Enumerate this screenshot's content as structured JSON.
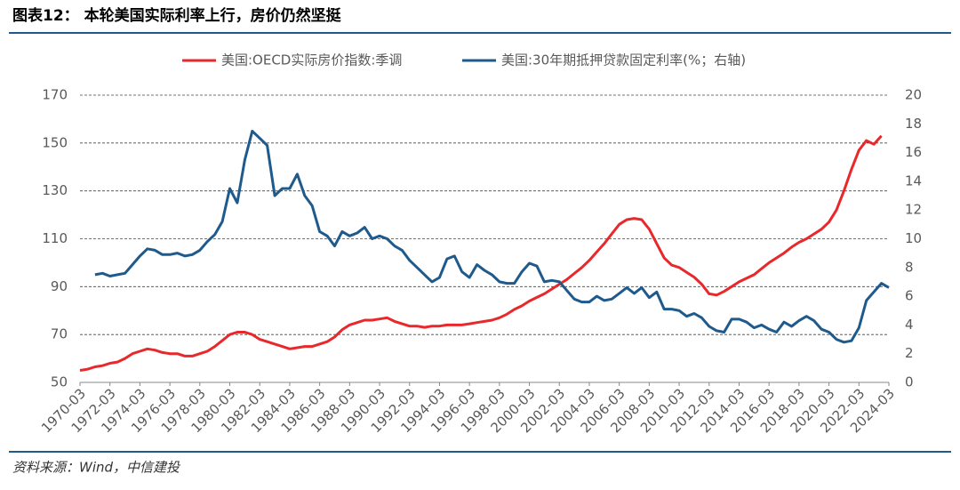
{
  "header": {
    "title": "图表12：  本轮美国实际利率上行，房价仍然坚挺"
  },
  "chart_data": {
    "type": "line",
    "x": [
      1970,
      1970.5,
      1971,
      1971.5,
      1972,
      1972.5,
      1973,
      1973.5,
      1974,
      1974.5,
      1975,
      1975.5,
      1976,
      1976.5,
      1977,
      1977.5,
      1978,
      1978.5,
      1979,
      1979.5,
      1980,
      1980.5,
      1981,
      1981.5,
      1982,
      1982.5,
      1983,
      1983.5,
      1984,
      1984.5,
      1985,
      1985.5,
      1986,
      1986.5,
      1987,
      1987.5,
      1988,
      1988.5,
      1989,
      1989.5,
      1990,
      1990.5,
      1991,
      1991.5,
      1992,
      1992.5,
      1993,
      1993.5,
      1994,
      1994.5,
      1995,
      1995.5,
      1996,
      1996.5,
      1997,
      1997.5,
      1998,
      1998.5,
      1999,
      1999.5,
      2000,
      2000.5,
      2001,
      2001.5,
      2002,
      2002.5,
      2003,
      2003.5,
      2004,
      2004.5,
      2005,
      2005.5,
      2006,
      2006.5,
      2007,
      2007.5,
      2008,
      2008.5,
      2009,
      2009.5,
      2010,
      2010.5,
      2011,
      2011.5,
      2012,
      2012.5,
      2013,
      2013.5,
      2014,
      2014.5,
      2015,
      2015.5,
      2016,
      2016.5,
      2017,
      2017.5,
      2018,
      2018.5,
      2019,
      2019.5,
      2020,
      2020.5,
      2021,
      2021.5,
      2022,
      2022.5,
      2023,
      2023.5,
      2024
    ],
    "series": [
      {
        "name": "美国:OECD实际房价指数:季调",
        "color": "#e8282b",
        "values": [
          55,
          55.5,
          56.5,
          57,
          58,
          58.5,
          60,
          62,
          63,
          64,
          63.5,
          62.5,
          62,
          62,
          61,
          61,
          62,
          63,
          65,
          67.5,
          70,
          71,
          71,
          70,
          68,
          67,
          66,
          65,
          64,
          64.5,
          65,
          65,
          66,
          67,
          69,
          72,
          74,
          75,
          76,
          76,
          76.5,
          77,
          75.5,
          74.5,
          73.5,
          73.5,
          73,
          73.5,
          73.5,
          74,
          74,
          74,
          74.5,
          75,
          75.5,
          76,
          77,
          78.5,
          80.5,
          82,
          84,
          85.5,
          87,
          89,
          91,
          93,
          95.5,
          98,
          101,
          104.5,
          108,
          112,
          116,
          118,
          118.5,
          118,
          114,
          108,
          102,
          99,
          98,
          96,
          94,
          91,
          87,
          86.5,
          88,
          90,
          92,
          93.5,
          95,
          97.5,
          100,
          102,
          104,
          106.5,
          108.5,
          110,
          112,
          114,
          117,
          122,
          130,
          139,
          147,
          151,
          149.5,
          153,
          null
        ]
      },
      {
        "name": "美国:30年期抵押贷款固定利率(%；右轴)",
        "color": "#1f5a8c",
        "axis": "y2",
        "values": [
          null,
          null,
          7.5,
          7.6,
          7.4,
          7.5,
          7.6,
          8.2,
          8.8,
          9.3,
          9.2,
          8.9,
          8.9,
          9.0,
          8.8,
          8.9,
          9.2,
          9.8,
          10.3,
          11.2,
          13.5,
          12.5,
          15.5,
          17.5,
          17.0,
          16.5,
          13.0,
          13.5,
          13.5,
          14.5,
          13.0,
          12.3,
          10.5,
          10.2,
          9.5,
          10.5,
          10.2,
          10.4,
          10.8,
          10.0,
          10.2,
          10.0,
          9.5,
          9.2,
          8.5,
          8.0,
          7.5,
          7.0,
          7.3,
          8.6,
          8.8,
          7.7,
          7.3,
          8.2,
          7.8,
          7.5,
          7.0,
          6.9,
          6.9,
          7.7,
          8.3,
          8.1,
          7.0,
          7.1,
          7.0,
          6.4,
          5.8,
          5.6,
          5.6,
          6.0,
          5.7,
          5.8,
          6.2,
          6.6,
          6.2,
          6.6,
          5.9,
          6.3,
          5.1,
          5.1,
          5.0,
          4.6,
          4.8,
          4.5,
          3.9,
          3.6,
          3.5,
          4.4,
          4.4,
          4.2,
          3.8,
          4.0,
          3.7,
          3.5,
          4.2,
          3.9,
          4.3,
          4.6,
          4.3,
          3.7,
          3.5,
          3.0,
          2.8,
          2.9,
          3.8,
          5.7,
          6.3,
          6.9,
          6.6
        ]
      }
    ],
    "xlim": [
      1970,
      2024
    ],
    "xticks": [
      {
        "value": 1970,
        "label": "1970-03"
      },
      {
        "value": 1972,
        "label": "1972-03"
      },
      {
        "value": 1974,
        "label": "1974-03"
      },
      {
        "value": 1976,
        "label": "1976-03"
      },
      {
        "value": 1978,
        "label": "1978-03"
      },
      {
        "value": 1980,
        "label": "1980-03"
      },
      {
        "value": 1982,
        "label": "1982-03"
      },
      {
        "value": 1984,
        "label": "1984-03"
      },
      {
        "value": 1986,
        "label": "1986-03"
      },
      {
        "value": 1988,
        "label": "1988-03"
      },
      {
        "value": 1990,
        "label": "1990-03"
      },
      {
        "value": 1992,
        "label": "1992-03"
      },
      {
        "value": 1994,
        "label": "1994-03"
      },
      {
        "value": 1996,
        "label": "1996-03"
      },
      {
        "value": 1998,
        "label": "1998-03"
      },
      {
        "value": 2000,
        "label": "2000-03"
      },
      {
        "value": 2002,
        "label": "2002-03"
      },
      {
        "value": 2004,
        "label": "2004-03"
      },
      {
        "value": 2006,
        "label": "2006-03"
      },
      {
        "value": 2008,
        "label": "2008-03"
      },
      {
        "value": 2010,
        "label": "2010-03"
      },
      {
        "value": 2012,
        "label": "2012-03"
      },
      {
        "value": 2014,
        "label": "2014-03"
      },
      {
        "value": 2016,
        "label": "2016-03"
      },
      {
        "value": 2018,
        "label": "2018-03"
      },
      {
        "value": 2020,
        "label": "2020-03"
      },
      {
        "value": 2022,
        "label": "2022-03"
      },
      {
        "value": 2024,
        "label": "2024-03"
      }
    ],
    "ylim": [
      50,
      170
    ],
    "yticks": [
      50,
      70,
      90,
      110,
      130,
      150,
      170
    ],
    "y2lim": [
      0,
      20
    ],
    "y2ticks": [
      0,
      2,
      4,
      6,
      8,
      10,
      12,
      14,
      16,
      18,
      20
    ],
    "grid": true,
    "legend": "top"
  },
  "footer": {
    "source": "资料来源：Wind，中信建投"
  }
}
